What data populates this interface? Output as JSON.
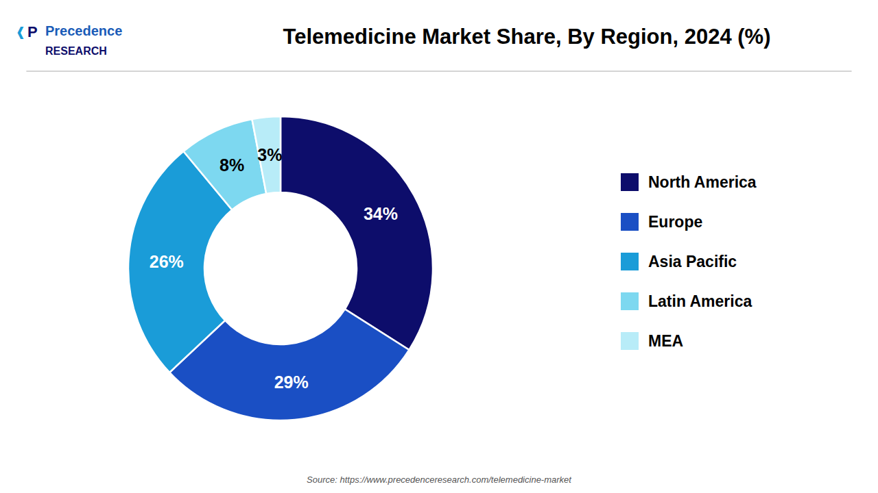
{
  "chart_data": {
    "type": "donut",
    "title": "Telemedicine Market Share, By Region, 2024 (%)",
    "categories": [
      "North America",
      "Europe",
      "Asia Pacific",
      "Latin America",
      "MEA"
    ],
    "values": [
      34,
      29,
      26,
      8,
      3
    ],
    "value_labels": [
      "34%",
      "29%",
      "26%",
      "8%",
      "3%"
    ],
    "colors": [
      "#0d0d6b",
      "#1a4fc4",
      "#1a9cd8",
      "#7dd8f0",
      "#b8ecf8"
    ],
    "data_labels": true,
    "legend": "right",
    "annotations": [
      "Precedence",
      "RESEARCH",
      "❰",
      "P",
      "Source: https://www.precedenceresearch.com/telemedicine-market"
    ]
  }
}
